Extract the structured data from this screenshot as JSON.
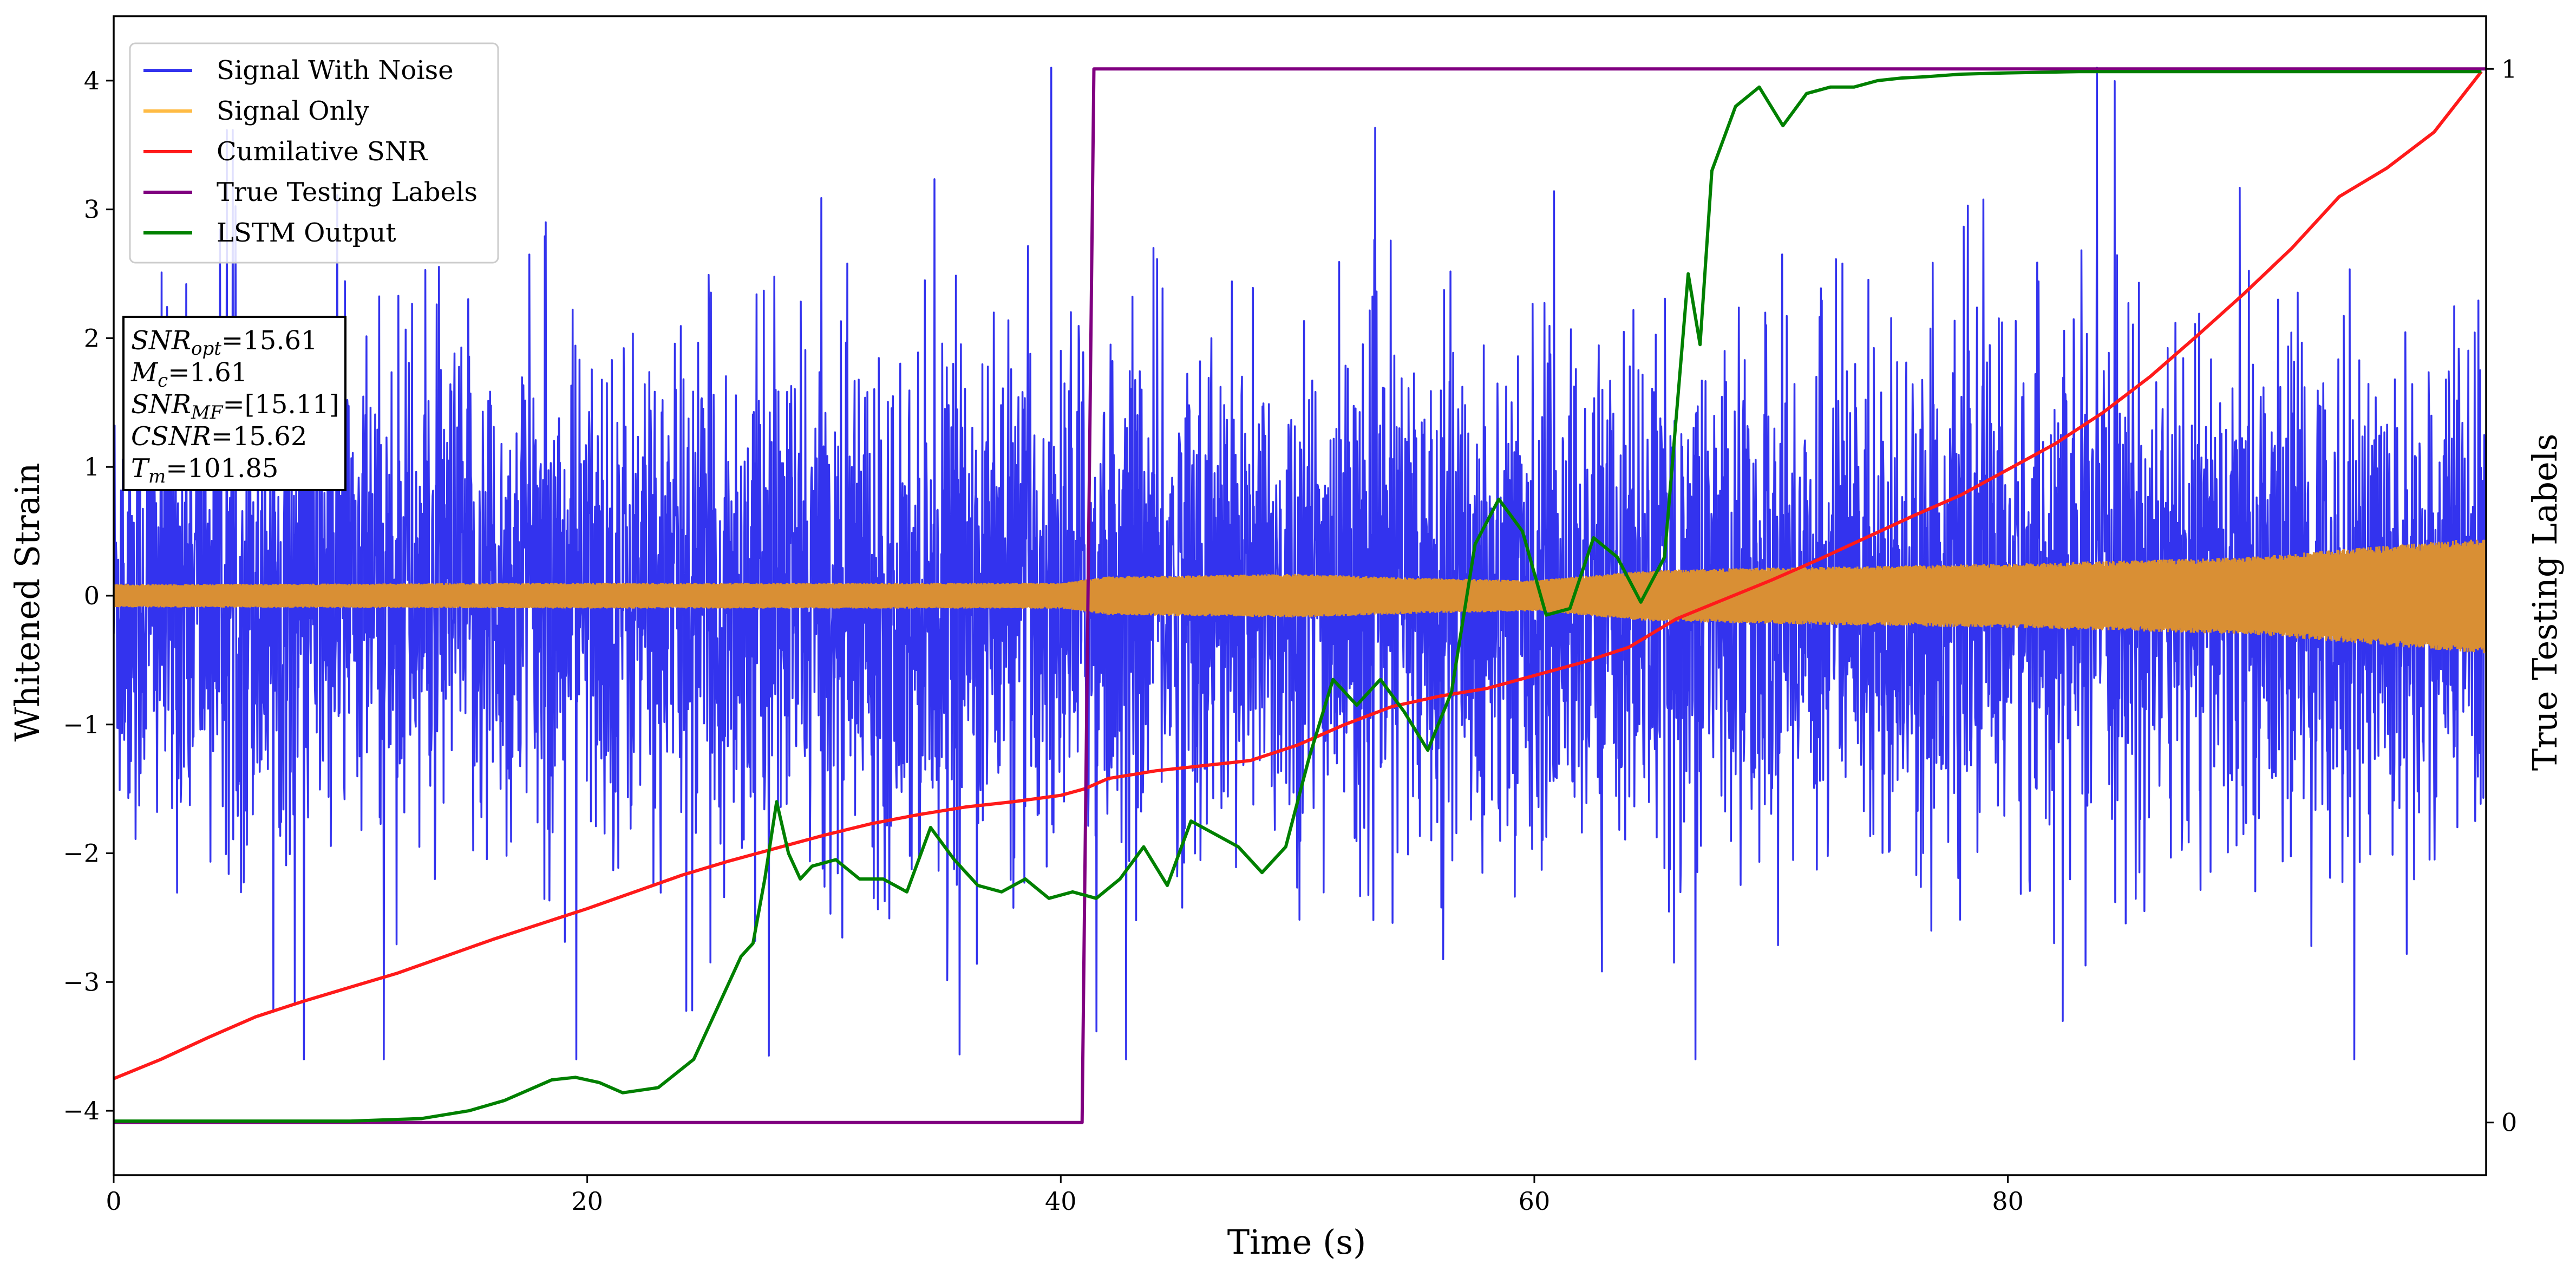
{
  "chart_data": {
    "type": "line",
    "x_label": "Time (s)",
    "y_label": "Whitened Strain",
    "y2_label": "True Testing Labels",
    "xlim": [
      0,
      100.2
    ],
    "ylim": [
      -4.5,
      4.5
    ],
    "y2lim": [
      -0.05,
      1.05
    ],
    "x_ticks": [
      "0",
      "20",
      "40",
      "60",
      "80"
    ],
    "x_tick_values": [
      0,
      20,
      40,
      60,
      80
    ],
    "y_ticks": [
      "−4",
      "−3",
      "−2",
      "−1",
      "0",
      "1",
      "2",
      "3",
      "4"
    ],
    "y_tick_values": [
      -4,
      -3,
      -2,
      -1,
      0,
      1,
      2,
      3,
      4
    ],
    "y2_ticks": [
      "0",
      "1"
    ],
    "y2_tick_values": [
      0,
      1
    ],
    "legend_position": "upper-left",
    "annotation": {
      "position": "left, below legend",
      "lines": [
        {
          "base": "SNR",
          "sub": "opt",
          "rest": "=15.61"
        },
        {
          "base": "M",
          "sub": "c",
          "rest": "=1.61"
        },
        {
          "base": "SNR",
          "sub": "MF",
          "rest": "=[15.11]"
        },
        {
          "base": "CSNR",
          "sub": "",
          "rest": "=15.62"
        },
        {
          "base": "T",
          "sub": "m",
          "rest": "=101.85"
        }
      ]
    },
    "series": [
      {
        "name": "Signal With Noise",
        "color": "#3333ee",
        "kind": "noise",
        "description_values": {
          "envelope_min": -3.6,
          "envelope_max": 4.1,
          "typical_amplitude": 1.1
        }
      },
      {
        "name": "Signal Only",
        "color": "#ffbb44",
        "kind": "chirp",
        "amplitude_envelope": {
          "x": [
            0,
            20,
            40,
            42,
            50,
            55,
            60,
            65,
            70,
            80,
            90,
            100
          ],
          "amplitude": [
            0.09,
            0.1,
            0.1,
            0.15,
            0.17,
            0.14,
            0.12,
            0.2,
            0.22,
            0.25,
            0.3,
            0.45
          ]
        }
      },
      {
        "name": "Cumilative SNR",
        "color": "#ff1a1a",
        "axis": "left",
        "x": [
          0,
          2,
          4,
          6,
          8,
          10,
          12,
          14,
          16,
          18,
          20,
          22,
          24,
          26,
          28,
          30,
          32,
          34,
          36,
          38,
          40,
          41,
          42,
          44,
          46,
          48,
          50,
          52,
          54,
          56,
          58,
          60,
          62,
          64,
          66,
          68,
          70,
          72,
          74,
          76,
          78,
          80,
          82,
          84,
          86,
          88,
          90,
          92,
          94,
          96,
          98,
          100
        ],
        "y": [
          -3.75,
          -3.6,
          -3.43,
          -3.27,
          -3.15,
          -3.04,
          -2.93,
          -2.8,
          -2.67,
          -2.55,
          -2.43,
          -2.3,
          -2.17,
          -2.06,
          -1.96,
          -1.86,
          -1.77,
          -1.7,
          -1.64,
          -1.6,
          -1.55,
          -1.5,
          -1.42,
          -1.36,
          -1.32,
          -1.28,
          -1.16,
          -1.0,
          -0.86,
          -0.78,
          -0.72,
          -0.62,
          -0.52,
          -0.4,
          -0.18,
          -0.03,
          0.12,
          0.28,
          0.45,
          0.62,
          0.78,
          0.98,
          1.18,
          1.42,
          1.7,
          2.02,
          2.35,
          2.7,
          3.1,
          3.32,
          3.6,
          4.07
        ]
      },
      {
        "name": "True Testing Labels",
        "color": "#800080",
        "axis": "right",
        "x": [
          0,
          40.9,
          41.4,
          100.2
        ],
        "y": [
          0,
          0,
          1,
          1
        ]
      },
      {
        "name": "LSTM Output",
        "color": "#008000",
        "axis": "left",
        "x": [
          0,
          10,
          13,
          15,
          16.5,
          17.5,
          18.5,
          19.5,
          20.5,
          21.5,
          23,
          24.5,
          25.5,
          26.5,
          27,
          27.5,
          28,
          28.5,
          29,
          29.5,
          30.5,
          31.5,
          32.5,
          33.5,
          34.5,
          35.5,
          36.5,
          37.5,
          38.5,
          39.5,
          40.5,
          41.5,
          42.5,
          43.5,
          44.5,
          45.5,
          46.5,
          47.5,
          48.5,
          49.5,
          50.5,
          51.5,
          52.5,
          53.5,
          54.5,
          55.5,
          56.5,
          57.5,
          58.5,
          59.5,
          60.5,
          61.5,
          62.5,
          63.5,
          64.5,
          65.5,
          66.5,
          67,
          67.5,
          68.5,
          69.5,
          70.5,
          71.5,
          72.5,
          73.5,
          74.5,
          75.5,
          76.5,
          78,
          80,
          83,
          86,
          90,
          95,
          100
        ],
        "y": [
          -4.08,
          -4.08,
          -4.06,
          -4.0,
          -3.92,
          -3.84,
          -3.76,
          -3.74,
          -3.78,
          -3.86,
          -3.82,
          -3.6,
          -3.2,
          -2.8,
          -2.7,
          -2.2,
          -1.6,
          -2.0,
          -2.2,
          -2.1,
          -2.05,
          -2.2,
          -2.2,
          -2.3,
          -1.8,
          -2.05,
          -2.25,
          -2.3,
          -2.2,
          -2.35,
          -2.3,
          -2.35,
          -2.2,
          -1.95,
          -2.25,
          -1.75,
          -1.85,
          -1.95,
          -2.15,
          -1.95,
          -1.25,
          -0.65,
          -0.85,
          -0.65,
          -0.9,
          -1.2,
          -0.75,
          0.4,
          0.75,
          0.5,
          -0.15,
          -0.1,
          0.45,
          0.3,
          -0.05,
          0.3,
          2.5,
          1.95,
          3.3,
          3.8,
          3.95,
          3.65,
          3.9,
          3.95,
          3.95,
          4.0,
          4.02,
          4.03,
          4.05,
          4.06,
          4.07,
          4.07,
          4.07,
          4.07,
          4.07
        ]
      }
    ]
  }
}
